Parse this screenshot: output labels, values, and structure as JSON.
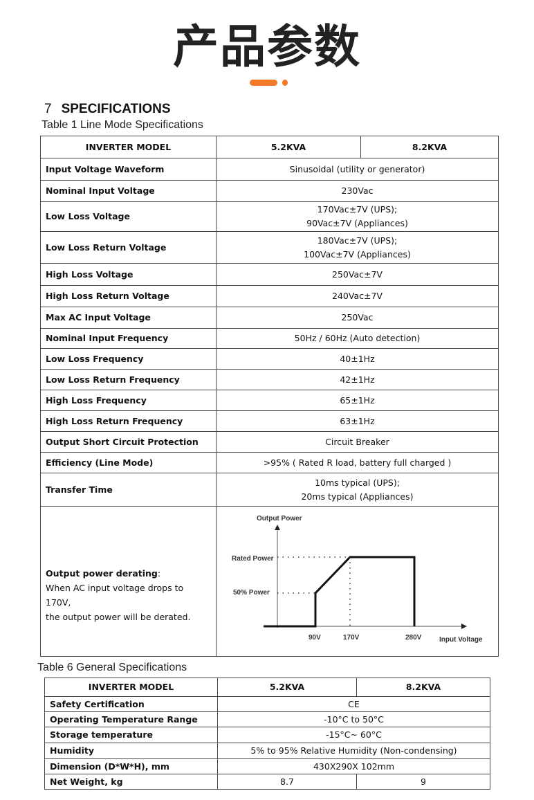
{
  "header": {
    "title": "产品参数",
    "accent_color": "#f47a2a"
  },
  "section": {
    "number": "7",
    "title": "SPECIFICATIONS"
  },
  "table1": {
    "caption": "Table 1 Line Mode Specifications",
    "header": [
      "INVERTER MODEL",
      "5.2KVA",
      "8.2KVA"
    ],
    "rows": [
      {
        "label": "Input Voltage Waveform",
        "value": [
          "Sinusoidal (utility or generator)"
        ]
      },
      {
        "label": "Nominal Input Voltage",
        "value": [
          "230Vac"
        ]
      },
      {
        "label": "Low Loss Voltage",
        "value": [
          "170Vac±7V (UPS);",
          "90Vac±7V (Appliances)"
        ]
      },
      {
        "label": "Low Loss Return Voltage",
        "value": [
          "180Vac±7V (UPS);",
          "100Vac±7V (Appliances)"
        ]
      },
      {
        "label": "High Loss Voltage",
        "value": [
          "250Vac±7V"
        ]
      },
      {
        "label": "High Loss Return Voltage",
        "value": [
          "240Vac±7V"
        ]
      },
      {
        "label": "Max AC Input Voltage",
        "value": [
          "250Vac"
        ]
      },
      {
        "label": "Nominal Input Frequency",
        "value": [
          "50Hz / 60Hz (Auto detection)"
        ]
      },
      {
        "label": "Low Loss Frequency",
        "value": [
          "40±1Hz"
        ]
      },
      {
        "label": "Low Loss Return Frequency",
        "value": [
          "42±1Hz"
        ]
      },
      {
        "label": "High Loss Frequency",
        "value": [
          "65±1Hz"
        ]
      },
      {
        "label": "High Loss Return Frequency",
        "value": [
          "63±1Hz"
        ]
      },
      {
        "label": "Output Short Circuit Protection",
        "value": [
          "Circuit Breaker"
        ]
      },
      {
        "label": "Efficiency (Line Mode)",
        "value": [
          ">95% ( Rated R load, battery full charged )"
        ]
      },
      {
        "label": "Transfer Time",
        "value": [
          "10ms typical (UPS);",
          "20ms typical (Appliances)"
        ]
      }
    ],
    "derating": {
      "label": "Output power derating",
      "colon": ":",
      "desc1": "When AC input voltage drops to 170V,",
      "desc2": "the output power will be derated."
    }
  },
  "chart_data": {
    "type": "line",
    "ylabel": "Output Power",
    "xlabel": "Input Voltage",
    "x_ticks": [
      "90V",
      "170V",
      "280V"
    ],
    "y_ticks": [
      "50% Power",
      "Rated Power"
    ],
    "points": [
      {
        "v": 90,
        "p": 0
      },
      {
        "v": 90,
        "p": 50
      },
      {
        "v": 170,
        "p": 100
      },
      {
        "v": 280,
        "p": 100
      },
      {
        "v": 280,
        "p": 0
      }
    ]
  },
  "table6": {
    "caption": "Table 6 General Specifications",
    "header": [
      "INVERTER MODEL",
      "5.2KVA",
      "8.2KVA"
    ],
    "rows": [
      {
        "label": "Safety Certification",
        "value": "CE"
      },
      {
        "label": "Operating Temperature Range",
        "value": "-10°C to 50°C"
      },
      {
        "label": "Storage temperature",
        "value": "-15°C~ 60°C"
      },
      {
        "label": "Humidity",
        "value": "5%  to 95%  Relative Humidity (Non-condensing)"
      },
      {
        "label": "Dimension (D*W*H),   mm",
        "value": "430X290X 102mm"
      }
    ],
    "weight": {
      "label": "Net Weight, kg",
      "a": "8.7",
      "b": "9"
    }
  }
}
